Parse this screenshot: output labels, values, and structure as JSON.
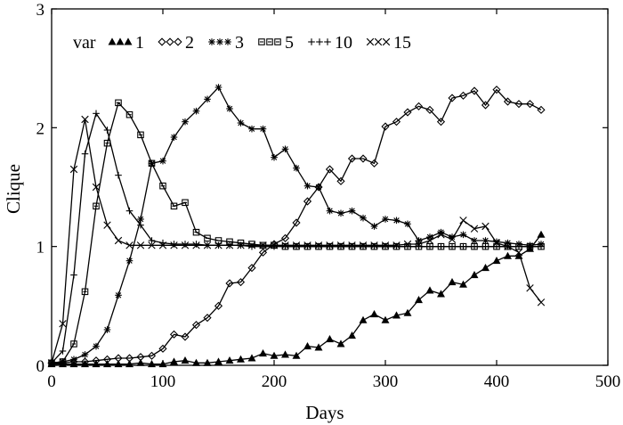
{
  "chart_data": {
    "type": "line",
    "title": "",
    "xlabel": "Days",
    "ylabel": "Clique",
    "xlim": [
      0,
      500
    ],
    "ylim": [
      0,
      3
    ],
    "xticks": [
      0,
      100,
      200,
      300,
      400,
      500
    ],
    "yticks": [
      0,
      1,
      2,
      3
    ],
    "grid": false,
    "legend": {
      "title": "var",
      "position": "top-left",
      "orientation": "horizontal"
    },
    "series": [
      {
        "name": "1",
        "marker": "triangle",
        "x": [
          0,
          10,
          20,
          30,
          40,
          50,
          60,
          70,
          80,
          90,
          100,
          110,
          120,
          130,
          140,
          150,
          160,
          170,
          180,
          190,
          200,
          210,
          220,
          230,
          240,
          250,
          260,
          270,
          280,
          290,
          300,
          310,
          320,
          330,
          340,
          350,
          360,
          370,
          380,
          390,
          400,
          410,
          420,
          430,
          440
        ],
        "y": [
          0.01,
          0.01,
          0.01,
          0.01,
          0.01,
          0.01,
          0.01,
          0.01,
          0.02,
          0.01,
          0.01,
          0.03,
          0.04,
          0.02,
          0.02,
          0.03,
          0.04,
          0.05,
          0.06,
          0.1,
          0.08,
          0.09,
          0.08,
          0.16,
          0.15,
          0.22,
          0.18,
          0.25,
          0.38,
          0.43,
          0.38,
          0.42,
          0.44,
          0.55,
          0.63,
          0.6,
          0.7,
          0.68,
          0.76,
          0.82,
          0.88,
          0.92,
          0.92,
          0.98,
          1.1
        ]
      },
      {
        "name": "2",
        "marker": "diamond",
        "x": [
          0,
          10,
          20,
          30,
          40,
          50,
          60,
          70,
          80,
          90,
          100,
          110,
          120,
          130,
          140,
          150,
          160,
          170,
          180,
          190,
          200,
          210,
          220,
          230,
          240,
          250,
          260,
          270,
          280,
          290,
          300,
          310,
          320,
          330,
          340,
          350,
          360,
          370,
          380,
          390,
          400,
          410,
          420,
          430,
          440
        ],
        "y": [
          0.02,
          0.02,
          0.03,
          0.03,
          0.04,
          0.05,
          0.06,
          0.06,
          0.07,
          0.08,
          0.14,
          0.26,
          0.24,
          0.34,
          0.4,
          0.5,
          0.69,
          0.7,
          0.82,
          0.95,
          1.02,
          1.07,
          1.2,
          1.38,
          1.5,
          1.65,
          1.55,
          1.74,
          1.74,
          1.7,
          2.01,
          2.05,
          2.13,
          2.18,
          2.15,
          2.05,
          2.25,
          2.27,
          2.31,
          2.19,
          2.32,
          2.22,
          2.2,
          2.2,
          2.15
        ]
      },
      {
        "name": "3",
        "marker": "asterisk",
        "x": [
          0,
          10,
          20,
          30,
          40,
          50,
          60,
          70,
          80,
          90,
          100,
          110,
          120,
          130,
          140,
          150,
          160,
          170,
          180,
          190,
          200,
          210,
          220,
          230,
          240,
          250,
          260,
          270,
          280,
          290,
          300,
          310,
          320,
          330,
          340,
          350,
          360,
          370,
          380,
          390,
          400,
          410,
          420,
          430,
          440
        ],
        "y": [
          0.02,
          0.03,
          0.05,
          0.09,
          0.16,
          0.3,
          0.59,
          0.88,
          1.23,
          1.7,
          1.72,
          1.92,
          2.05,
          2.14,
          2.24,
          2.34,
          2.16,
          2.04,
          1.99,
          1.99,
          1.75,
          1.82,
          1.66,
          1.51,
          1.5,
          1.3,
          1.28,
          1.3,
          1.24,
          1.17,
          1.23,
          1.22,
          1.19,
          1.05,
          1.08,
          1.12,
          1.08,
          1.1,
          1.05,
          1.05,
          1.04,
          1.03,
          1.02,
          1.01,
          1.02
        ]
      },
      {
        "name": "5",
        "marker": "square",
        "x": [
          0,
          10,
          20,
          30,
          40,
          50,
          60,
          70,
          80,
          90,
          100,
          110,
          120,
          130,
          140,
          150,
          160,
          170,
          180,
          190,
          200,
          210,
          220,
          230,
          240,
          250,
          260,
          270,
          280,
          290,
          300,
          310,
          320,
          330,
          340,
          350,
          360,
          370,
          380,
          390,
          400,
          410,
          420,
          430,
          440
        ],
        "y": [
          0.02,
          0.03,
          0.18,
          0.62,
          1.34,
          1.87,
          2.21,
          2.11,
          1.94,
          1.7,
          1.51,
          1.34,
          1.37,
          1.12,
          1.07,
          1.05,
          1.04,
          1.03,
          1.02,
          1.01,
          1.01,
          1.0,
          1.0,
          1.0,
          1.0,
          1.0,
          1.0,
          1.0,
          1.0,
          1.0,
          1.0,
          1.0,
          1.0,
          1.0,
          1.0,
          1.0,
          1.0,
          1.0,
          1.0,
          1.0,
          1.0,
          1.0,
          1.0,
          1.0,
          1.0
        ]
      },
      {
        "name": "10",
        "marker": "plus",
        "x": [
          0,
          10,
          20,
          30,
          40,
          50,
          60,
          70,
          80,
          90,
          100,
          110,
          120,
          130,
          140,
          150,
          160,
          170,
          180,
          190,
          200,
          210,
          220,
          230,
          240,
          250,
          260,
          270,
          280,
          290,
          300,
          310,
          320,
          330,
          340,
          350,
          360,
          370,
          380,
          390,
          400,
          410,
          420,
          430,
          440
        ],
        "y": [
          0.02,
          0.12,
          0.76,
          1.78,
          2.12,
          1.98,
          1.6,
          1.3,
          1.18,
          1.05,
          1.03,
          1.02,
          1.02,
          1.02,
          1.01,
          1.01,
          1.01,
          1.01,
          1.0,
          1.0,
          1.0,
          1.0,
          1.0,
          1.0,
          1.0,
          1.0,
          1.0,
          1.0,
          1.0,
          1.0,
          1.0,
          1.0,
          1.0,
          1.0,
          1.0,
          1.0,
          1.0,
          1.0,
          1.0,
          1.0,
          1.0,
          1.0,
          1.0,
          1.0,
          1.0
        ]
      },
      {
        "name": "15",
        "marker": "cross",
        "x": [
          0,
          10,
          20,
          30,
          40,
          50,
          60,
          70,
          80,
          90,
          100,
          110,
          120,
          130,
          140,
          150,
          160,
          170,
          180,
          190,
          200,
          210,
          220,
          230,
          240,
          250,
          260,
          270,
          280,
          290,
          300,
          310,
          320,
          330,
          340,
          350,
          360,
          370,
          380,
          390,
          400,
          410,
          420,
          430,
          440
        ],
        "y": [
          0.02,
          0.35,
          1.65,
          2.07,
          1.5,
          1.18,
          1.05,
          1.01,
          1.01,
          1.01,
          1.01,
          1.01,
          1.01,
          1.01,
          1.01,
          1.01,
          1.01,
          1.01,
          1.01,
          1.01,
          1.01,
          1.01,
          1.01,
          1.01,
          1.01,
          1.01,
          1.01,
          1.01,
          1.01,
          1.01,
          1.01,
          1.01,
          1.02,
          1.02,
          1.05,
          1.1,
          1.06,
          1.22,
          1.15,
          1.17,
          1.03,
          1.0,
          0.95,
          0.65,
          0.53
        ]
      }
    ]
  }
}
